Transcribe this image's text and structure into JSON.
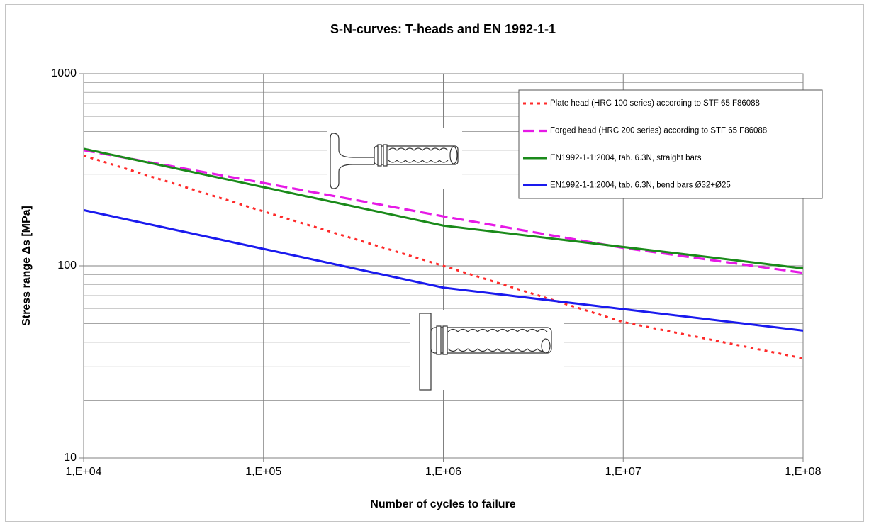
{
  "chart_data": {
    "type": "line",
    "title": "S-N-curves: T-heads and EN 1992-1-1",
    "x_label": "Number of cycles to failure",
    "y_label": "Stress range Δs [MPa]",
    "x_scale": "log",
    "y_scale": "log",
    "xlim": [
      10000,
      100000000
    ],
    "ylim": [
      10,
      1000
    ],
    "xticks": [
      {
        "value": 10000,
        "label": "1,E+04"
      },
      {
        "value": 100000,
        "label": "1,E+05"
      },
      {
        "value": 1000000,
        "label": "1,E+06"
      },
      {
        "value": 10000000,
        "label": "1,E+07"
      },
      {
        "value": 100000000,
        "label": "1,E+08"
      }
    ],
    "yticks": [
      10,
      100,
      1000
    ],
    "grid": true,
    "minor_grid_y": true,
    "legend": "top-right",
    "series": [
      {
        "name": "Plate head (HRC 100 series) according to STF 65 F86088",
        "color": "#ff2a2a",
        "line_style": "dotted",
        "x": [
          10000,
          100000,
          1000000,
          10000000,
          100000000
        ],
        "values": [
          375,
          192,
          100,
          51,
          33
        ]
      },
      {
        "name": "Forged head (HRC 200 series) according to STF 65 F86088",
        "color": "#e619e6",
        "line_style": "dashed",
        "x": [
          10000,
          100000,
          1000000,
          10000000,
          100000000
        ],
        "values": [
          400,
          270,
          181,
          124,
          92
        ]
      },
      {
        "name": "EN1992-1-1:2004, tab. 6.3N, straight bars",
        "color": "#1a8a1a",
        "line_style": "solid",
        "x": [
          10000,
          1000000,
          100000000
        ],
        "values": [
          407,
          162,
          97
        ]
      },
      {
        "name": "EN1992-1-1:2004, tab. 6.3N, bend bars Ø32+Ø25",
        "color": "#1a1aee",
        "line_style": "solid",
        "x": [
          10000,
          1000000,
          100000000
        ],
        "values": [
          195,
          77,
          46
        ]
      }
    ]
  }
}
